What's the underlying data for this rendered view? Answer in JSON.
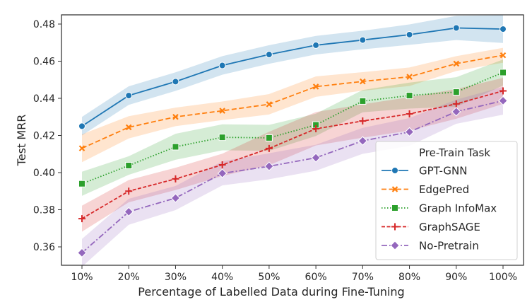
{
  "chart_data": {
    "type": "line",
    "title": "",
    "xlabel": "Percentage of Labelled Data during Fine-Tuning",
    "ylabel": "Test MRR",
    "categories": [
      "10%",
      "20%",
      "30%",
      "40%",
      "50%",
      "60%",
      "70%",
      "80%",
      "90%",
      "100%"
    ],
    "yticks": [
      "0.36",
      "0.38",
      "0.40",
      "0.42",
      "0.44",
      "0.46",
      "0.48"
    ],
    "ylim": [
      0.35,
      0.485
    ],
    "grid": false,
    "legend": {
      "title": "Pre-Train Task",
      "position": "bottom-right"
    },
    "series": [
      {
        "name": "GPT-GNN",
        "color": "#1f77b4",
        "marker": "circle",
        "linestyle": "solid",
        "values": [
          0.425,
          0.4415,
          0.449,
          0.4577,
          0.4636,
          0.4686,
          0.4714,
          0.4743,
          0.4779,
          0.4773
        ],
        "ci": [
          0.005,
          0.005,
          0.005,
          0.005,
          0.005,
          0.005,
          0.005,
          0.0055,
          0.0065,
          0.0075
        ]
      },
      {
        "name": "EdgePred",
        "color": "#ff7f0e",
        "marker": "x",
        "linestyle": "dashed",
        "values": [
          0.4131,
          0.4244,
          0.43,
          0.4333,
          0.4368,
          0.4463,
          0.4491,
          0.4516,
          0.4587,
          0.4632
        ],
        "ci": [
          0.0075,
          0.006,
          0.005,
          0.005,
          0.0055,
          0.0055,
          0.005,
          0.005,
          0.004,
          0.004
        ]
      },
      {
        "name": "Graph InfoMax",
        "color": "#2ca02c",
        "marker": "square",
        "linestyle": "dotted",
        "values": [
          0.394,
          0.4038,
          0.4139,
          0.419,
          0.4187,
          0.4257,
          0.4385,
          0.4415,
          0.4434,
          0.4539
        ],
        "ci": [
          0.0065,
          0.005,
          0.007,
          0.007,
          0.007,
          0.006,
          0.006,
          0.007,
          0.008,
          0.007
        ]
      },
      {
        "name": "GraphSAGE",
        "color": "#d62728",
        "marker": "plus",
        "linestyle": "dashed-short",
        "values": [
          0.3752,
          0.39,
          0.3966,
          0.4042,
          0.413,
          0.4236,
          0.4278,
          0.4316,
          0.437,
          0.444
        ],
        "ci": [
          0.007,
          0.006,
          0.006,
          0.006,
          0.009,
          0.009,
          0.009,
          0.009,
          0.008,
          0.007
        ]
      },
      {
        "name": "No-Pretrain",
        "color": "#9467bd",
        "marker": "diamond",
        "linestyle": "dashdot",
        "values": [
          0.3568,
          0.3789,
          0.3863,
          0.3996,
          0.4034,
          0.408,
          0.4171,
          0.4219,
          0.4328,
          0.4387
        ],
        "ci": [
          0.0075,
          0.007,
          0.0065,
          0.0065,
          0.007,
          0.007,
          0.007,
          0.0075,
          0.0065,
          0.0075
        ]
      }
    ]
  }
}
